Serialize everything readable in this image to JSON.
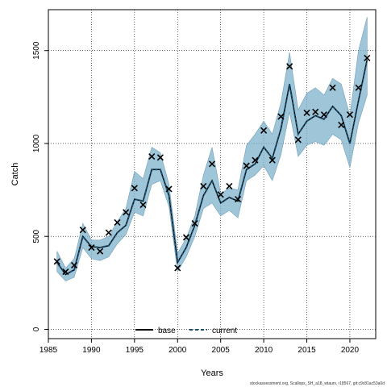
{
  "chart_data": {
    "type": "line",
    "xlabel": "Years",
    "ylabel": "Catch",
    "xlim": [
      1985,
      2023
    ],
    "ylim": [
      -50,
      1720
    ],
    "x_ticks": [
      1985,
      1990,
      1995,
      2000,
      2005,
      2010,
      2015,
      2020
    ],
    "y_ticks": [
      0,
      500,
      1000,
      1500
    ],
    "grid": true,
    "legend_position": "bottom-center",
    "x": [
      1986,
      1987,
      1988,
      1989,
      1990,
      1991,
      1992,
      1993,
      1994,
      1995,
      1996,
      1997,
      1998,
      1999,
      2000,
      2001,
      2002,
      2003,
      2004,
      2005,
      2006,
      2007,
      2008,
      2009,
      2010,
      2011,
      2012,
      2013,
      2014,
      2015,
      2016,
      2017,
      2018,
      2019,
      2020,
      2021,
      2022
    ],
    "series": [
      {
        "name": "base",
        "line_style": "solid",
        "color": "#000000",
        "values": [
          360,
          295,
          320,
          500,
          445,
          440,
          450,
          520,
          560,
          700,
          690,
          860,
          860,
          720,
          360,
          440,
          560,
          720,
          800,
          680,
          710,
          690,
          860,
          890,
          980,
          920,
          1080,
          1320,
          1050,
          1120,
          1150,
          1130,
          1200,
          1150,
          1000,
          1230,
          1450
        ]
      },
      {
        "name": "current",
        "line_style": "dashed",
        "color": "#1a4f6e",
        "values": [
          360,
          295,
          320,
          500,
          445,
          440,
          450,
          520,
          560,
          700,
          690,
          860,
          860,
          720,
          360,
          440,
          560,
          720,
          800,
          680,
          710,
          690,
          860,
          890,
          980,
          920,
          1080,
          1320,
          1050,
          1120,
          1150,
          1130,
          1200,
          1150,
          1000,
          1230,
          1450
        ]
      }
    ],
    "band": {
      "color": "#7fb1cc",
      "upper": [
        420,
        330,
        380,
        570,
        480,
        480,
        500,
        580,
        650,
        850,
        810,
        980,
        950,
        780,
        410,
        490,
        610,
        830,
        980,
        730,
        760,
        750,
        990,
        1050,
        1120,
        1050,
        1220,
        1490,
        1180,
        1270,
        1300,
        1260,
        1350,
        1320,
        1150,
        1500,
        1680
      ],
      "lower": [
        310,
        260,
        280,
        440,
        380,
        370,
        390,
        460,
        510,
        630,
        610,
        780,
        800,
        660,
        310,
        390,
        500,
        650,
        680,
        610,
        640,
        600,
        800,
        830,
        880,
        800,
        940,
        1170,
        930,
        990,
        1010,
        990,
        1050,
        1020,
        870,
        1110,
        1260
      ]
    },
    "observed": {
      "marker": "x",
      "values": [
        365,
        310,
        345,
        535,
        440,
        420,
        520,
        575,
        630,
        760,
        670,
        930,
        925,
        755,
        330,
        495,
        570,
        770,
        890,
        725,
        770,
        700,
        880,
        910,
        1070,
        910,
        1145,
        1415,
        1020,
        1165,
        1170,
        1155,
        1300,
        1100,
        1155,
        1300,
        1460
      ]
    },
    "footnote": "stockassessment.org, Scallops_SH_a18_wtaurv, r18567, git:c9c81ac53a0d"
  }
}
